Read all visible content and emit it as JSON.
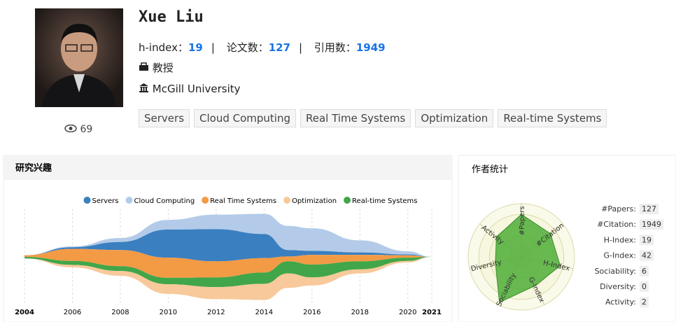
{
  "profile": {
    "name": "Xue Liu",
    "metrics": [
      {
        "label": "h-index：",
        "value": 19
      },
      {
        "label": "论文数：",
        "value": 127
      },
      {
        "label": "引用数：",
        "value": 1949
      }
    ],
    "position": "教授",
    "affiliation": "McGill University",
    "tags": [
      "Servers",
      "Cloud Computing",
      "Real Time Systems",
      "Optimization",
      "Real-time Systems"
    ],
    "views": 69
  },
  "interests": {
    "title": "研究兴趣",
    "x": [
      2004,
      2006,
      2008,
      2010,
      2012,
      2014,
      2015,
      2016,
      2018,
      2020,
      2021
    ],
    "xticks": [
      2004,
      2006,
      2008,
      2010,
      2012,
      2014,
      2016,
      2018,
      2020,
      2021
    ],
    "xlim": [
      2004,
      2021
    ],
    "series": [
      {
        "name": "Servers",
        "color": "#3a7fbf",
        "values": [
          0,
          2,
          10,
          35,
          40,
          30,
          8,
          5,
          3,
          1,
          0
        ]
      },
      {
        "name": "Cloud Computing",
        "color": "#b3cbe9",
        "values": [
          0,
          1,
          5,
          12,
          18,
          25,
          30,
          28,
          15,
          4,
          0
        ]
      },
      {
        "name": "Real Time Systems",
        "color": "#f39a45",
        "values": [
          2,
          15,
          20,
          25,
          20,
          18,
          6,
          12,
          8,
          3,
          0
        ]
      },
      {
        "name": "Optimization",
        "color": "#f8c99a",
        "values": [
          0,
          3,
          6,
          12,
          15,
          20,
          18,
          10,
          5,
          2,
          0
        ]
      },
      {
        "name": "Real-time Systems",
        "color": "#41a649",
        "values": [
          2,
          5,
          6,
          8,
          12,
          14,
          15,
          16,
          10,
          4,
          0
        ]
      }
    ]
  },
  "stats": {
    "title": "作者统计",
    "radar": {
      "axes": [
        "#Papers",
        "#Citation",
        "H-Index",
        "G-Index",
        "Sociability",
        "Diversity",
        "Activity"
      ],
      "values": [
        0.8,
        0.7,
        0.75,
        0.6,
        0.95,
        0.5,
        0.6
      ],
      "rlim": [
        0,
        1
      ],
      "rings": [
        0.2,
        0.4,
        0.6,
        0.8,
        1
      ]
    },
    "items": [
      {
        "label": "#Papers:",
        "value": 127
      },
      {
        "label": "#Citation:",
        "value": 1949
      },
      {
        "label": "H-Index:",
        "value": 19
      },
      {
        "label": "G-Index:",
        "value": 42
      },
      {
        "label": "Sociability:",
        "value": 6
      },
      {
        "label": "Diversity:",
        "value": 0
      },
      {
        "label": "Activity:",
        "value": 2
      }
    ]
  }
}
